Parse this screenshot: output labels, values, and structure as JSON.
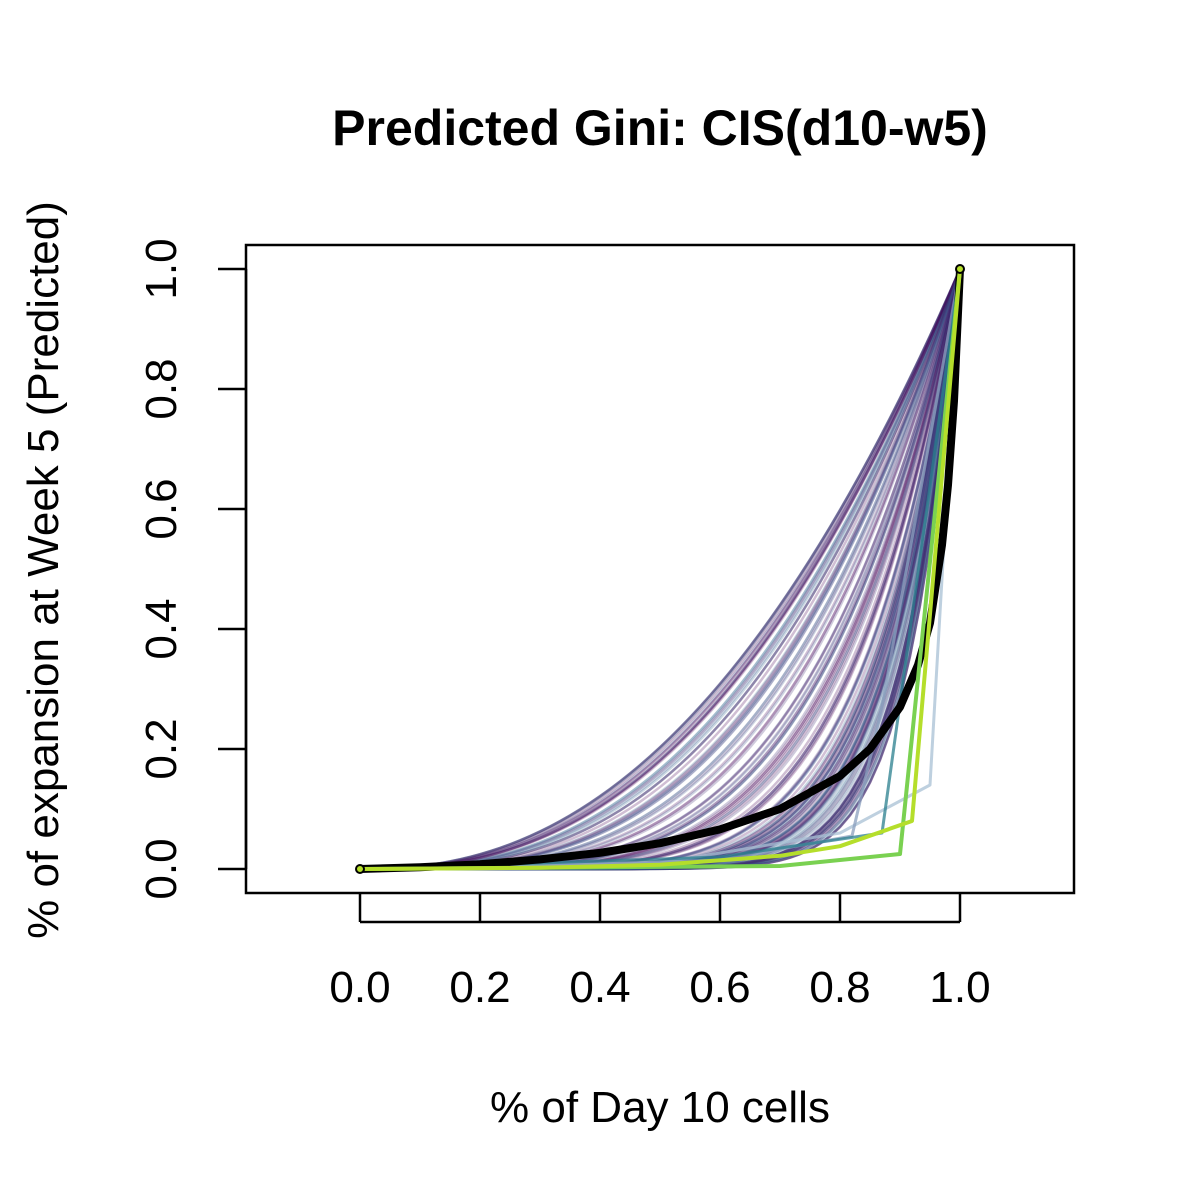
{
  "chart_data": {
    "type": "line",
    "title": "Predicted Gini: CIS(d10-w5)",
    "xlabel": "% of Day 10 cells",
    "ylabel": "% of expansion at Week 5 (Predicted)",
    "xlim": [
      -0.19,
      1.19
    ],
    "ylim": [
      -0.04,
      1.04
    ],
    "x_ticks": [
      "0.0",
      "0.2",
      "0.4",
      "0.6",
      "0.8",
      "1.0"
    ],
    "y_ticks": [
      "0.0",
      "0.2",
      "0.4",
      "0.6",
      "0.8",
      "1.0"
    ],
    "grid": false,
    "legend": "none",
    "background_curves": {
      "description_count": 140,
      "power_exponent_range": [
        2.3,
        12
      ],
      "colors": [
        "#440154",
        "#46085c",
        "#3f2d75",
        "#3b528b",
        "#31688e"
      ],
      "opacity": 0.25
    },
    "series": [
      {
        "role": "mean-curve",
        "color": "#000000",
        "x": [
          0,
          0.1,
          0.2,
          0.3,
          0.4,
          0.5,
          0.6,
          0.7,
          0.8,
          0.85,
          0.9,
          0.93,
          0.95,
          0.97,
          0.98,
          0.99,
          1.0
        ],
        "y": [
          0,
          0.003,
          0.008,
          0.016,
          0.027,
          0.043,
          0.066,
          0.1,
          0.155,
          0.2,
          0.27,
          0.34,
          0.41,
          0.54,
          0.64,
          0.78,
          1.0
        ]
      },
      {
        "role": "outlier",
        "color": "#7ad151",
        "x": [
          0,
          0.7,
          0.9,
          1.0
        ],
        "y": [
          0,
          0.005,
          0.025,
          1.0
        ]
      },
      {
        "role": "outlier",
        "color": "#b5de2b",
        "x": [
          0,
          0.3,
          0.5,
          0.7,
          0.8,
          0.92,
          1.0
        ],
        "y": [
          0,
          0.002,
          0.007,
          0.022,
          0.038,
          0.08,
          1.0
        ]
      },
      {
        "role": "outlier",
        "color": "#a8c0d4",
        "x": [
          0,
          0.5,
          0.8,
          0.95,
          1.0
        ],
        "y": [
          0,
          0.01,
          0.06,
          0.14,
          1.0
        ]
      },
      {
        "role": "outlier",
        "color": "#8a9fbe",
        "x": [
          0,
          0.6,
          0.82,
          0.87,
          1.0
        ],
        "y": [
          0,
          0.015,
          0.055,
          0.27,
          1.0
        ]
      },
      {
        "role": "outlier",
        "color": "#2a7f8e",
        "x": [
          0,
          0.6,
          0.87,
          1.0
        ],
        "y": [
          0,
          0.02,
          0.06,
          1.0
        ]
      }
    ]
  }
}
